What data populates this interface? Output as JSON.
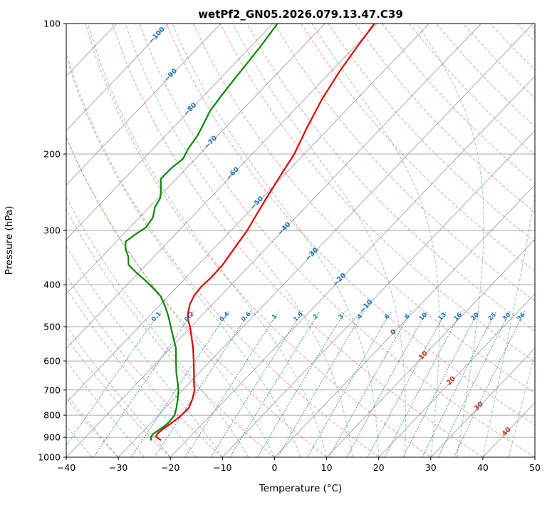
{
  "chart_data": {
    "type": "skewt-log-p",
    "title": "wetPf2_GN05.2026.079.13.47.C39",
    "xlabel": "Temperature (°C)",
    "ylabel": "Pressure (hPa)",
    "xlim": [
      -40,
      50
    ],
    "pressure_lim": [
      100,
      1000
    ],
    "x_ticks": [
      -40,
      -30,
      -20,
      -10,
      0,
      10,
      20,
      30,
      40,
      50
    ],
    "p_ticks": [
      100,
      200,
      300,
      400,
      500,
      600,
      700,
      800,
      900,
      1000
    ],
    "grid": true,
    "skew_deg": 45,
    "series": [
      {
        "name": "temperature",
        "color": "#e60000",
        "points": [
          [
            100,
            -60.5
          ],
          [
            115,
            -59.4
          ],
          [
            130,
            -58.3
          ],
          [
            150,
            -56.6
          ],
          [
            175,
            -54.2
          ],
          [
            200,
            -51.9
          ],
          [
            230,
            -50.3
          ],
          [
            260,
            -48.8
          ],
          [
            300,
            -46.9
          ],
          [
            330,
            -46.1
          ],
          [
            360,
            -45.3
          ],
          [
            385,
            -45.2
          ],
          [
            405,
            -45.4
          ],
          [
            425,
            -45.1
          ],
          [
            445,
            -44.3
          ],
          [
            465,
            -43.1
          ],
          [
            485,
            -41.6
          ],
          [
            500,
            -40.2
          ],
          [
            530,
            -37.9
          ],
          [
            560,
            -35.7
          ],
          [
            600,
            -33.2
          ],
          [
            640,
            -30.9
          ],
          [
            680,
            -28.8
          ],
          [
            700,
            -27.7
          ],
          [
            736,
            -26.4
          ],
          [
            770,
            -25.5
          ],
          [
            800,
            -25.6
          ],
          [
            824,
            -25.9
          ],
          [
            846,
            -26.3
          ],
          [
            862,
            -26.6
          ],
          [
            879,
            -26.8
          ],
          [
            895,
            -26.6
          ],
          [
            905,
            -25.8
          ],
          [
            912,
            -25.1
          ]
        ]
      },
      {
        "name": "dewpoint",
        "color": "#0a870a",
        "points": [
          [
            100,
            -79.1
          ],
          [
            112,
            -78.2
          ],
          [
            122,
            -77.7
          ],
          [
            134,
            -77.2
          ],
          [
            147,
            -76.6
          ],
          [
            159,
            -76.0
          ],
          [
            171,
            -74.8
          ],
          [
            181,
            -73.9
          ],
          [
            195,
            -73.2
          ],
          [
            205,
            -72.4
          ],
          [
            215,
            -72.9
          ],
          [
            228,
            -73.0
          ],
          [
            240,
            -71.2
          ],
          [
            252,
            -69.6
          ],
          [
            265,
            -68.9
          ],
          [
            280,
            -67.4
          ],
          [
            295,
            -66.9
          ],
          [
            305,
            -67.6
          ],
          [
            318,
            -68.2
          ],
          [
            330,
            -67.0
          ],
          [
            345,
            -64.9
          ],
          [
            360,
            -63.4
          ],
          [
            375,
            -60.5
          ],
          [
            390,
            -57.5
          ],
          [
            405,
            -54.8
          ],
          [
            425,
            -51.5
          ],
          [
            450,
            -48.6
          ],
          [
            475,
            -46.1
          ],
          [
            500,
            -43.9
          ],
          [
            530,
            -41.4
          ],
          [
            560,
            -39.0
          ],
          [
            600,
            -36.6
          ],
          [
            640,
            -34.3
          ],
          [
            680,
            -31.9
          ],
          [
            700,
            -30.8
          ],
          [
            736,
            -29.2
          ],
          [
            770,
            -27.9
          ],
          [
            800,
            -26.9
          ],
          [
            830,
            -26.7
          ],
          [
            850,
            -26.9
          ],
          [
            870,
            -27.3
          ],
          [
            885,
            -27.6
          ],
          [
            900,
            -27.4
          ],
          [
            912,
            -26.9
          ]
        ]
      }
    ],
    "isotherm_labels": [
      {
        "t": -100,
        "p": 106
      },
      {
        "t": -90,
        "p": 131
      },
      {
        "t": -80,
        "p": 157
      },
      {
        "t": -70,
        "p": 187
      },
      {
        "t": -60,
        "p": 221
      },
      {
        "t": -50,
        "p": 258
      },
      {
        "t": -40,
        "p": 296
      },
      {
        "t": -30,
        "p": 339
      },
      {
        "t": -20,
        "p": 388
      },
      {
        "t": -10,
        "p": 447
      },
      {
        "t": 0,
        "p": 513
      },
      {
        "t": 10,
        "p": 580
      },
      {
        "t": 20,
        "p": 664
      },
      {
        "t": 30,
        "p": 760
      },
      {
        "t": 40,
        "p": 870
      }
    ],
    "isotherm_label_colors": {
      "negative": "#1f77b4",
      "zero": "#5a5a5a",
      "positive": "#c0392b"
    },
    "mixing_ratio_values": [
      0.1,
      0.2,
      0.4,
      0.6,
      1,
      1.5,
      2,
      3,
      4,
      6,
      8,
      10,
      13,
      16,
      20,
      25,
      30,
      36
    ],
    "mixing_label_pressure": 472,
    "background": {
      "isobars": {
        "values": [
          100,
          200,
          300,
          400,
          500,
          600,
          700,
          800,
          900,
          1000
        ],
        "color": "#ababab"
      },
      "isotherms": {
        "min": -160,
        "max": 50,
        "step": 10,
        "color": "#ababab"
      },
      "dry_adiabats": {
        "min": -40,
        "max": 200,
        "step": 10,
        "color": "rgba(214,60,52,0.45)"
      },
      "moist_adiabats": {
        "min": -40,
        "max": 50,
        "step": 5,
        "color": "rgba(52,150,62,0.42)"
      },
      "mixing_lines": {
        "color": "rgba(31,119,180,0.85)",
        "p_top": 455
      }
    }
  }
}
